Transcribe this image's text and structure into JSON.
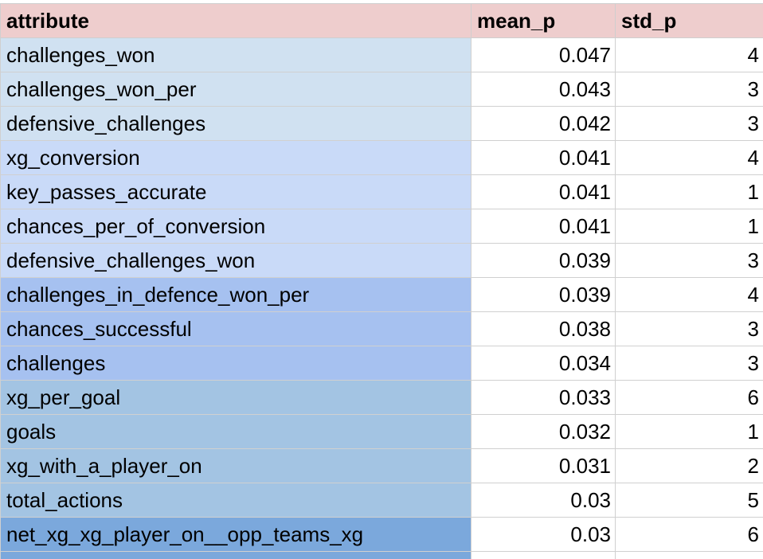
{
  "columns": [
    "attribute",
    "mean_p",
    "std_p"
  ],
  "rows": [
    {
      "attribute": "challenges_won",
      "mean_p": "0.047",
      "std_p": "4",
      "shade": "#d0e1f1"
    },
    {
      "attribute": "challenges_won_per",
      "mean_p": "0.043",
      "std_p": "3",
      "shade": "#d0e1f1"
    },
    {
      "attribute": "defensive_challenges",
      "mean_p": "0.042",
      "std_p": "3",
      "shade": "#d0e1f1"
    },
    {
      "attribute": "xg_conversion",
      "mean_p": "0.041",
      "std_p": "4",
      "shade": "#c9daf8"
    },
    {
      "attribute": "key_passes_accurate",
      "mean_p": "0.041",
      "std_p": "1",
      "shade": "#c9daf8"
    },
    {
      "attribute": "chances_per_of_conversion",
      "mean_p": "0.041",
      "std_p": "1",
      "shade": "#c9daf8"
    },
    {
      "attribute": "defensive_challenges_won",
      "mean_p": "0.039",
      "std_p": "3",
      "shade": "#c9daf8"
    },
    {
      "attribute": "challenges_in_defence_won_per",
      "mean_p": "0.039",
      "std_p": "4",
      "shade": "#a6c1f0"
    },
    {
      "attribute": "chances_successful",
      "mean_p": "0.038",
      "std_p": "3",
      "shade": "#a6c1f0"
    },
    {
      "attribute": "challenges",
      "mean_p": "0.034",
      "std_p": "3",
      "shade": "#a6c1f0"
    },
    {
      "attribute": "xg_per_goal",
      "mean_p": "0.033",
      "std_p": "6",
      "shade": "#a3c4e3"
    },
    {
      "attribute": "goals",
      "mean_p": "0.032",
      "std_p": "1",
      "shade": "#a3c4e3"
    },
    {
      "attribute": "xg_with_a_player_on",
      "mean_p": "0.031",
      "std_p": "2",
      "shade": "#a3c4e3"
    },
    {
      "attribute": "total_actions",
      "mean_p": "0.03",
      "std_p": "5",
      "shade": "#a3c4e3"
    },
    {
      "attribute": "net_xg_xg_player_on__opp_teams_xg",
      "mean_p": "0.03",
      "std_p": "6",
      "shade": "#7ba8dc"
    }
  ],
  "partial_row_shade": "#7ba8dc"
}
